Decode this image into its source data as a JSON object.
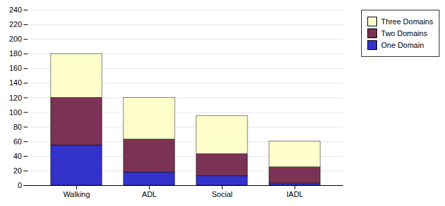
{
  "chart_data": {
    "type": "bar",
    "stacked": true,
    "categories": [
      "Walking",
      "ADL",
      "Social",
      "IADL"
    ],
    "series": [
      {
        "name": "One Domain",
        "color": "#3333cc",
        "values": [
          55,
          18,
          13,
          3
        ]
      },
      {
        "name": "Two Domains",
        "color": "#7b3355",
        "values": [
          65,
          45,
          30,
          22
        ]
      },
      {
        "name": "Three Domains",
        "color": "#ffffcc",
        "values": [
          60,
          57,
          52,
          35
        ]
      }
    ],
    "ylim": [
      0,
      240
    ],
    "yticks": [
      0,
      20,
      40,
      60,
      80,
      100,
      120,
      140,
      160,
      180,
      200,
      220,
      240
    ],
    "grid": true,
    "legend": "upper right"
  }
}
